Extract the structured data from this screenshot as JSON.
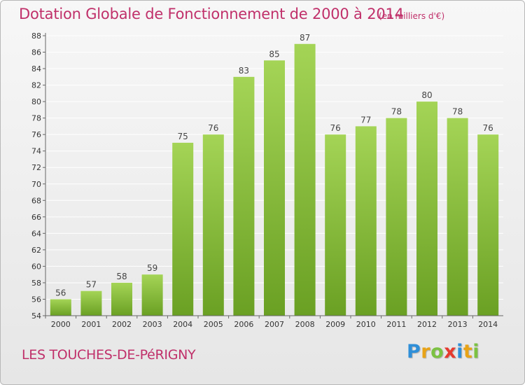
{
  "header": {
    "title": "Dotation Globale de Fonctionnement de 2000 à 2014",
    "subtitle": "(en milliers d'€)"
  },
  "footer": {
    "commune": "LES TOUCHES-DE-PéRIGNY",
    "logo_letters": [
      {
        "ch": "P",
        "color": "#2f8fd8"
      },
      {
        "ch": "r",
        "color": "#e8a317"
      },
      {
        "ch": "o",
        "color": "#7cc242"
      },
      {
        "ch": "x",
        "color": "#e63a2e"
      },
      {
        "ch": "i",
        "color": "#2f8fd8"
      },
      {
        "ch": "t",
        "color": "#e8a317"
      },
      {
        "ch": "i",
        "color": "#7cc242"
      }
    ]
  },
  "colors": {
    "title": "#c0306a",
    "bar_light": "#a4d456",
    "bar_dark": "#6aa023",
    "grid": "#ffffff"
  },
  "chart_data": {
    "type": "bar",
    "categories": [
      "2000",
      "2001",
      "2002",
      "2003",
      "2004",
      "2005",
      "2006",
      "2007",
      "2008",
      "2009",
      "2010",
      "2011",
      "2012",
      "2013",
      "2014"
    ],
    "values": [
      56,
      57,
      58,
      59,
      75,
      76,
      83,
      85,
      87,
      76,
      77,
      78,
      80,
      78,
      76
    ],
    "yticks": [
      54,
      56,
      58,
      60,
      62,
      64,
      66,
      68,
      70,
      72,
      74,
      76,
      78,
      80,
      82,
      84,
      86,
      88
    ],
    "ylim": [
      54,
      88
    ],
    "grid": true,
    "legend": "none"
  }
}
